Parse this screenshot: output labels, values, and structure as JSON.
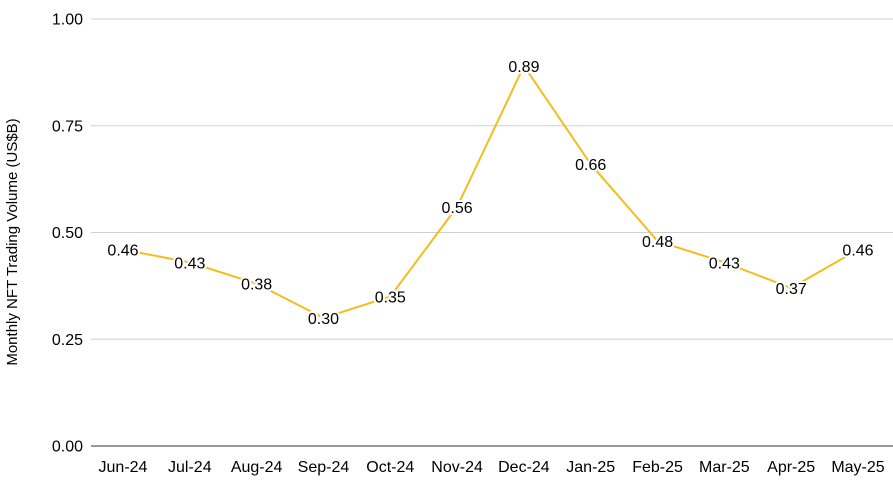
{
  "chart_data": {
    "type": "line",
    "title": "",
    "xlabel": "",
    "ylabel": "Monthly NFT Trading Volume (US$B)",
    "categories": [
      "Jun-24",
      "Jul-24",
      "Aug-24",
      "Sep-24",
      "Oct-24",
      "Nov-24",
      "Dec-24",
      "Jan-25",
      "Feb-25",
      "Mar-25",
      "Apr-25",
      "May-25"
    ],
    "series": [
      {
        "values": [
          0.46,
          0.43,
          0.38,
          0.3,
          0.35,
          0.56,
          0.89,
          0.66,
          0.48,
          0.43,
          0.37,
          0.46
        ],
        "data_labels": [
          "0.46",
          "0.43",
          "0.38",
          "0.30",
          "0.35",
          "0.56",
          "0.89",
          "0.66",
          "0.48",
          "0.43",
          "0.37",
          "0.46"
        ],
        "color": "#F2BD1D"
      }
    ],
    "ylim": [
      0,
      1
    ],
    "yticks": [
      0,
      0.25,
      0.5,
      0.75,
      1
    ],
    "ytick_labels": [
      "0.00",
      "0.25",
      "0.50",
      "0.75",
      "1.00"
    ],
    "grid": true,
    "legend": "none"
  }
}
